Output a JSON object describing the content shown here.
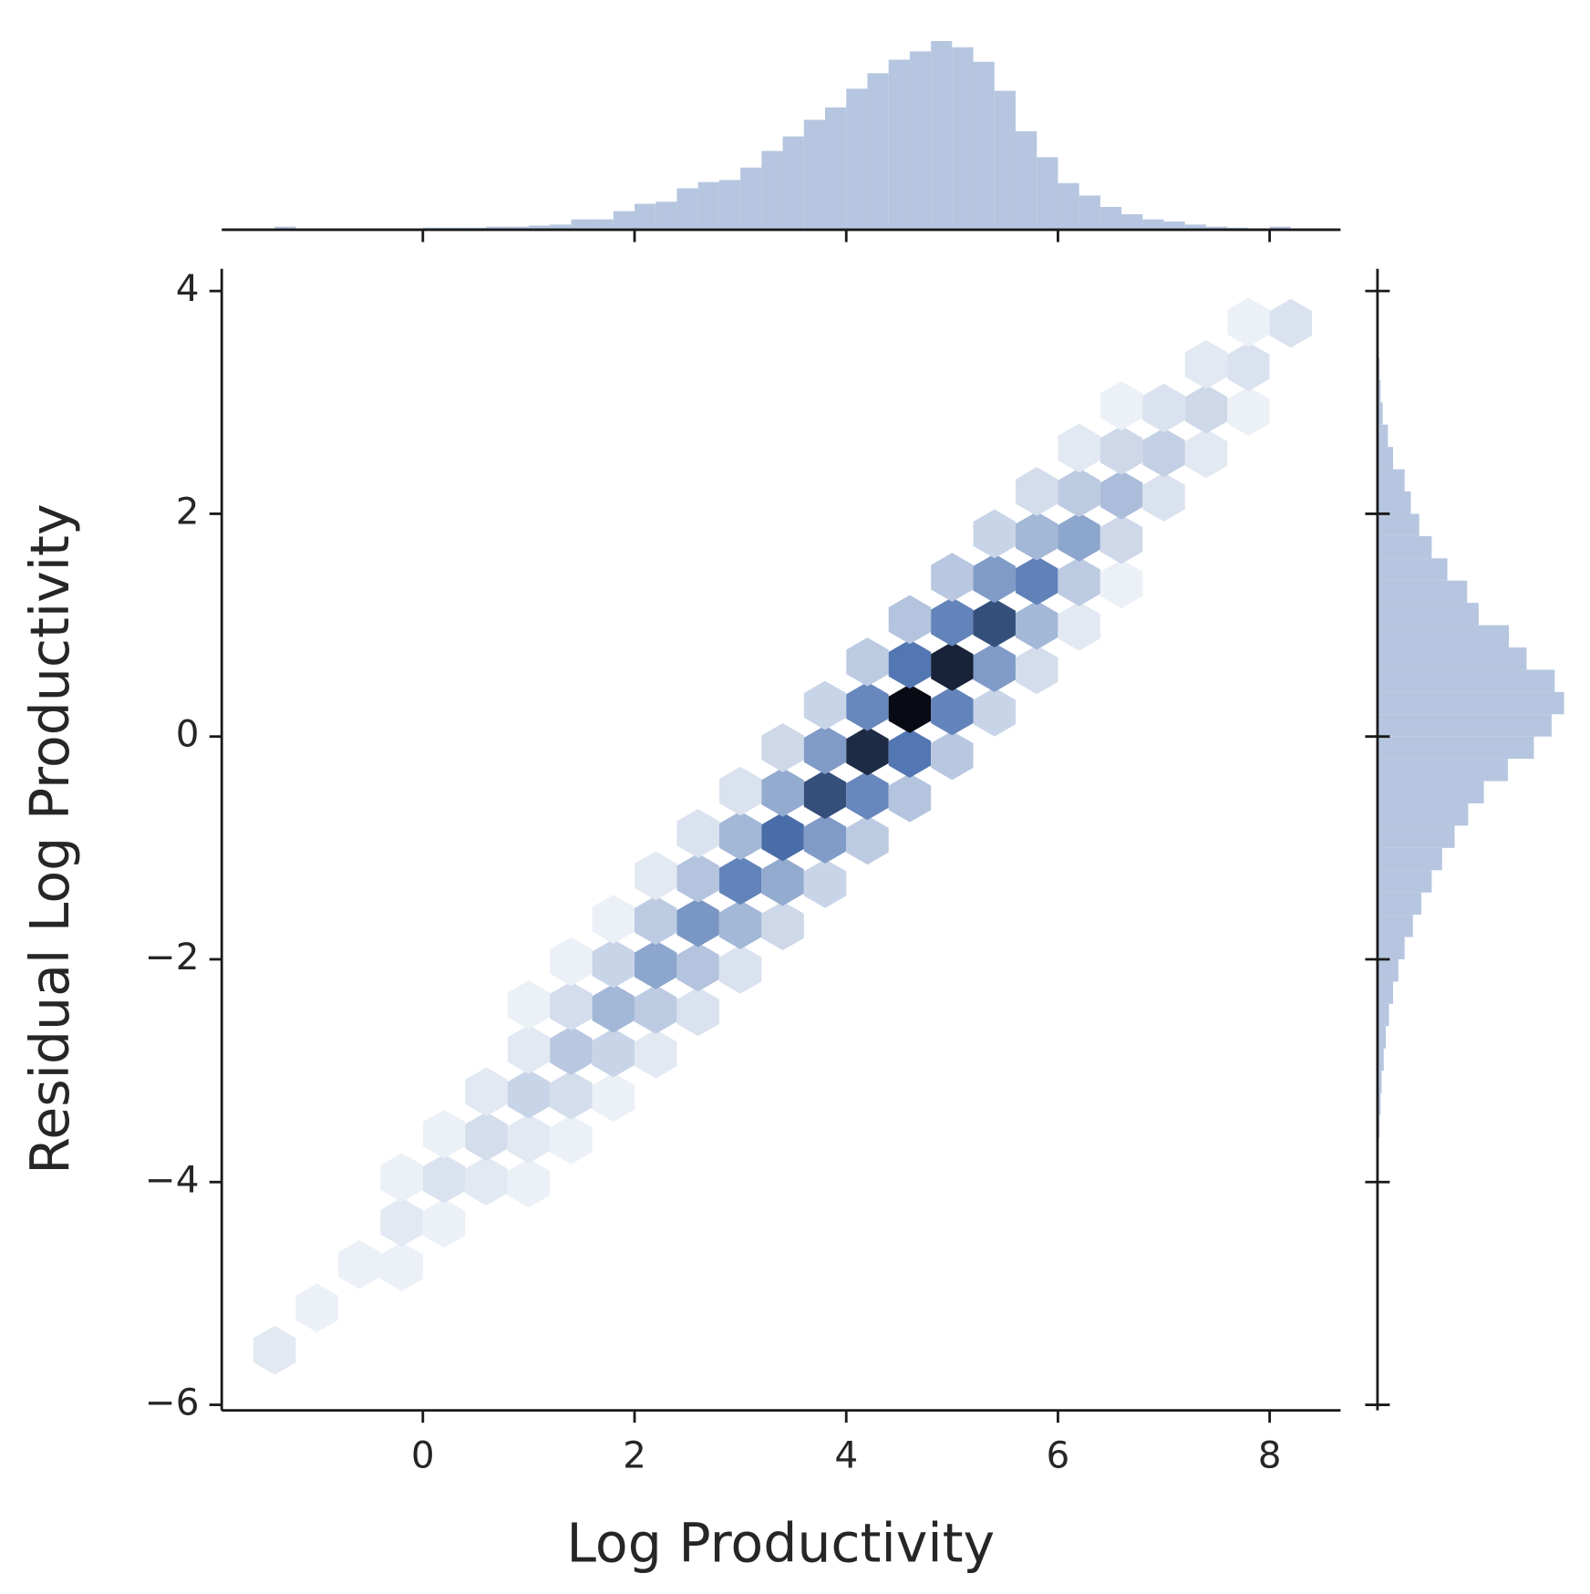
{
  "chart_data": {
    "type": "hexbin",
    "x_label": "Log Productivity",
    "y_label": "Residual Log Productivity",
    "xlim": [
      -1.9,
      8.67
    ],
    "ylim": [
      -6.05,
      4.2
    ],
    "xticks": [
      0,
      2,
      4,
      6,
      8
    ],
    "yticks": [
      {
        "value": -6,
        "label": "−6"
      },
      {
        "value": -4,
        "label": "−4"
      },
      {
        "value": -2,
        "label": "−2"
      },
      0,
      2,
      4
    ],
    "color": "#4c72b0",
    "hexbin": {
      "x": [
        -1.4,
        -1.0,
        -0.6,
        -0.2,
        -0.2,
        -0.2,
        0.2,
        0.2,
        0.2,
        0.6,
        0.6,
        0.6,
        1.0,
        1.0,
        1.0,
        1.0,
        1.0,
        1.4,
        1.4,
        1.4,
        1.4,
        1.4,
        1.8,
        1.8,
        1.8,
        1.8,
        1.8,
        2.2,
        2.2,
        2.2,
        2.2,
        2.2,
        2.6,
        2.6,
        2.6,
        2.6,
        2.6,
        3.0,
        3.0,
        3.0,
        3.0,
        3.0,
        3.4,
        3.4,
        3.4,
        3.4,
        3.4,
        3.8,
        3.8,
        3.8,
        3.8,
        3.8,
        4.2,
        4.2,
        4.2,
        4.2,
        4.2,
        4.6,
        4.6,
        4.6,
        4.6,
        4.6,
        5.0,
        5.0,
        5.0,
        5.0,
        5.0,
        5.4,
        5.4,
        5.4,
        5.4,
        5.4,
        5.8,
        5.8,
        5.8,
        5.8,
        5.8,
        6.2,
        6.2,
        6.2,
        6.2,
        6.2,
        6.6,
        6.6,
        6.6,
        6.6,
        6.6,
        7.0,
        7.0,
        7.0,
        7.4,
        7.4,
        7.4,
        7.8,
        7.8,
        7.8,
        8.2
      ],
      "y": [
        -5.51,
        -5.13,
        -4.74,
        -4.76,
        -4.36,
        -3.96,
        -4.37,
        -3.97,
        -3.57,
        -3.99,
        -3.59,
        -3.19,
        -4.01,
        -3.61,
        -3.21,
        -2.81,
        -2.41,
        -3.62,
        -3.22,
        -2.82,
        -2.42,
        -2.02,
        -3.24,
        -2.84,
        -2.44,
        -2.04,
        -1.64,
        -2.85,
        -2.45,
        -2.05,
        -1.65,
        -1.25,
        -2.47,
        -2.07,
        -1.67,
        -1.27,
        -0.87,
        -2.09,
        -1.69,
        -1.29,
        -0.89,
        -0.49,
        -1.7,
        -1.3,
        -0.9,
        -0.5,
        -0.1,
        -1.32,
        -0.92,
        -0.52,
        -0.12,
        0.28,
        -0.93,
        -0.53,
        -0.13,
        0.27,
        0.67,
        -0.55,
        -0.15,
        0.25,
        0.65,
        1.05,
        -0.17,
        0.23,
        0.63,
        1.03,
        1.43,
        0.22,
        0.62,
        1.02,
        1.42,
        1.82,
        0.6,
        1.0,
        1.4,
        1.8,
        2.2,
        0.99,
        1.39,
        1.79,
        2.19,
        2.59,
        1.37,
        1.77,
        2.17,
        2.57,
        2.97,
        2.15,
        2.55,
        2.95,
        2.54,
        2.94,
        3.34,
        2.92,
        3.32,
        3.72,
        3.71
      ],
      "counts": [
        2,
        1,
        1,
        1,
        2,
        1,
        1,
        3,
        1,
        2,
        4,
        2,
        1,
        2,
        6,
        2,
        1,
        1,
        4,
        9,
        4,
        1,
        1,
        6,
        14,
        6,
        1,
        2,
        8,
        20,
        8,
        2,
        3,
        10,
        26,
        10,
        3,
        3,
        14,
        34,
        14,
        3,
        5,
        18,
        45,
        18,
        5,
        6,
        24,
        60,
        24,
        6,
        8,
        32,
        80,
        32,
        8,
        10,
        40,
        100,
        40,
        10,
        9,
        34,
        85,
        34,
        9,
        6,
        24,
        60,
        24,
        6,
        4,
        14,
        35,
        14,
        4,
        2,
        8,
        20,
        8,
        2,
        1,
        5,
        12,
        5,
        1,
        3,
        7,
        3,
        2,
        5,
        2,
        1,
        3,
        1,
        3
      ]
    },
    "marginal_x": {
      "color": "#b6c6e0",
      "bins": [
        -1.4,
        -1.2,
        -1.0,
        -0.8,
        -0.6,
        -0.4,
        -0.2,
        0.0,
        0.2,
        0.4,
        0.6,
        0.8,
        1.0,
        1.2,
        1.4,
        1.6,
        1.8,
        2.0,
        2.2,
        2.4,
        2.6,
        2.8,
        3.0,
        3.2,
        3.4,
        3.6,
        3.8,
        4.0,
        4.2,
        4.4,
        4.6,
        4.8,
        5.0,
        5.2,
        5.4,
        5.6,
        5.8,
        6.0,
        6.2,
        6.4,
        6.6,
        6.8,
        7.0,
        7.2,
        7.4,
        7.6,
        7.8,
        8.0,
        8.2
      ],
      "counts": [
        3,
        1,
        1,
        1,
        1,
        1,
        1,
        2,
        2,
        2,
        3,
        3,
        4,
        5,
        10,
        10,
        18,
        25,
        27,
        40,
        46,
        48,
        60,
        76,
        90,
        106,
        118,
        136,
        151,
        164,
        172,
        182,
        176,
        162,
        134,
        95,
        70,
        45,
        33,
        22,
        15,
        10,
        8,
        5,
        3,
        2,
        1,
        3
      ]
    },
    "marginal_y": {
      "color": "#b6c6e0",
      "bins": [
        -4.0,
        -3.8,
        -3.6,
        -3.4,
        -3.2,
        -3.0,
        -2.8,
        -2.6,
        -2.4,
        -2.2,
        -2.0,
        -1.8,
        -1.6,
        -1.4,
        -1.2,
        -1.0,
        -0.8,
        -0.6,
        -0.4,
        -0.2,
        0.0,
        0.2,
        0.4,
        0.6,
        0.8,
        1.0,
        1.2,
        1.4,
        1.6,
        1.8,
        2.0,
        2.2,
        2.4,
        2.6,
        2.8,
        3.0,
        3.2,
        3.4,
        3.6,
        3.8
      ],
      "counts": [
        1,
        1,
        2,
        3,
        4,
        6,
        8,
        11,
        15,
        20,
        26,
        34,
        42,
        52,
        62,
        74,
        87,
        102,
        125,
        150,
        167,
        179,
        170,
        143,
        126,
        97,
        86,
        67,
        52,
        40,
        32,
        26,
        15,
        10,
        5,
        3,
        2,
        1,
        1
      ]
    }
  }
}
